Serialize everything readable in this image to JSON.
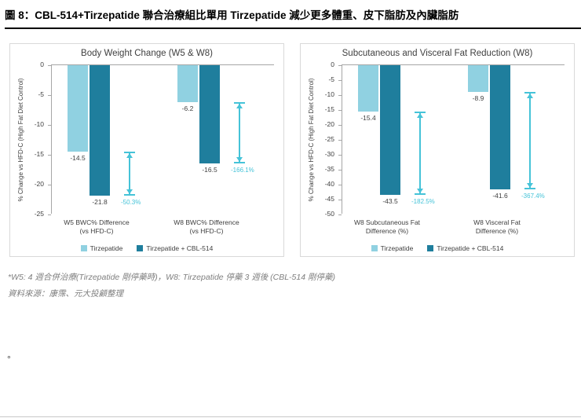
{
  "header": {
    "title": "圖 8：CBL-514+Tirzepatide 聯合治療組比單用 Tirzepatide 減少更多體重、皮下脂肪及內臟脂肪"
  },
  "footnotes": {
    "note1": "*W5: 4 週合併治療(Tirzepatide 剛停藥時)，W8: Tirzepatide 停藥 3 週後 (CBL-514 剛停藥)",
    "note2": "資料來源：康霈、元大投顧整理"
  },
  "stray_mark": "°",
  "colors": {
    "series": [
      "#90D1E1",
      "#1F7E9D"
    ],
    "diff": "#45C3D8",
    "axis": "#A6A6A6",
    "text": "#404040"
  },
  "chart_data": [
    {
      "type": "bar",
      "title": "Body Weight Change (W5 & W8)",
      "ylabel": "% Change vs HFD-C (High Fat Diet Control)",
      "ylim": [
        0,
        -25
      ],
      "ytick_step": 5,
      "grid": false,
      "legend_position": "bottom",
      "categories": [
        [
          "W5 BWC% Difference",
          "(vs HFD-C)"
        ],
        [
          "W8 BWC% Difference",
          "(vs HFD-C)"
        ]
      ],
      "series": [
        {
          "name": "Tirzepatide",
          "values": [
            -14.5,
            -6.2
          ]
        },
        {
          "name": "Tirzepatide + CBL-514",
          "values": [
            -21.8,
            -16.5
          ]
        }
      ],
      "diff_labels": [
        "-50.3%",
        "-166.1%"
      ]
    },
    {
      "type": "bar",
      "title": "Subcutaneous and Visceral Fat Reduction (W8)",
      "ylabel": "% Change vs HFD-C (High Fat Diet Control)",
      "ylim": [
        0,
        -50
      ],
      "ytick_step": 5,
      "grid": false,
      "legend_position": "bottom",
      "categories": [
        [
          "W8 Subcutaneous Fat",
          "Difference (%)"
        ],
        [
          "W8 Visceral Fat",
          "Difference (%)"
        ]
      ],
      "series": [
        {
          "name": "Tirzepatide",
          "values": [
            -15.4,
            -8.9
          ]
        },
        {
          "name": "Tirzepatide + CBL-514",
          "values": [
            -43.5,
            -41.6
          ]
        }
      ],
      "diff_labels": [
        "-182.5%",
        "-367.4%"
      ]
    }
  ]
}
